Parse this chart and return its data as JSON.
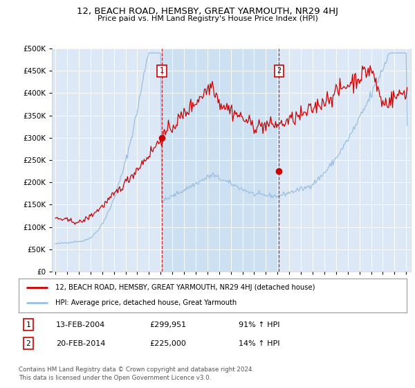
{
  "title": "12, BEACH ROAD, HEMSBY, GREAT YARMOUTH, NR29 4HJ",
  "subtitle": "Price paid vs. HM Land Registry's House Price Index (HPI)",
  "legend_line1": "12, BEACH ROAD, HEMSBY, GREAT YARMOUTH, NR29 4HJ (detached house)",
  "legend_line2": "HPI: Average price, detached house, Great Yarmouth",
  "sale1_date": "13-FEB-2004",
  "sale1_price": 299951,
  "sale1_label": "91% ↑ HPI",
  "sale2_date": "20-FEB-2014",
  "sale2_price": 225000,
  "sale2_label": "14% ↑ HPI",
  "footnote": "Contains HM Land Registry data © Crown copyright and database right 2024.\nThis data is licensed under the Open Government Licence v3.0.",
  "sale1_x": 2004.12,
  "sale2_x": 2014.12,
  "hpi_color": "#9bbfe0",
  "property_color": "#cc0000",
  "background_plot": "#dce8f5",
  "shade_color": "#c8dff0",
  "ylim_max": 500000,
  "xlim_left": 1994.7,
  "xlim_right": 2025.4
}
